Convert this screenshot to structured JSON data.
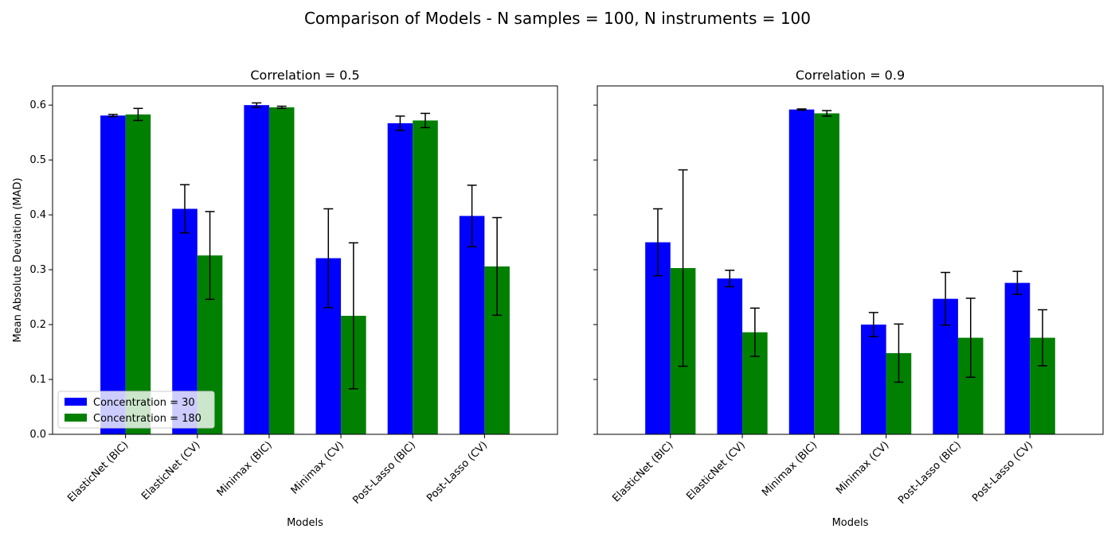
{
  "figure": {
    "title": "Comparison of Models - N samples = 100, N instruments = 100"
  },
  "colors": {
    "series_0": "#0000ff",
    "series_1": "#008000"
  },
  "chart_data": [
    {
      "type": "bar",
      "title": "Correlation = 0.5",
      "xlabel": "Models",
      "ylabel": "Mean Absolute Deviation (MAD)",
      "ylim": [
        0,
        0.635
      ],
      "yticks": [
        "0.0",
        "0.1",
        "0.2",
        "0.3",
        "0.4",
        "0.5",
        "0.6"
      ],
      "legend": "lower-left",
      "categories": [
        "ElasticNet (BIC)",
        "ElasticNet (CV)",
        "Minimax (BIC)",
        "Minimax (CV)",
        "Post-Lasso (BIC)",
        "Post-Lasso (CV)"
      ],
      "series": [
        {
          "name": "Concentration = 30",
          "values": [
            0.581,
            0.411,
            0.6,
            0.321,
            0.567,
            0.398
          ],
          "errors": [
            0.002,
            0.044,
            0.004,
            0.09,
            0.013,
            0.056
          ]
        },
        {
          "name": "Concentration = 180",
          "values": [
            0.583,
            0.326,
            0.596,
            0.216,
            0.572,
            0.306
          ],
          "errors": [
            0.011,
            0.08,
            0.002,
            0.133,
            0.013,
            0.089
          ]
        }
      ]
    },
    {
      "type": "bar",
      "title": "Correlation = 0.9",
      "xlabel": "Models",
      "ylabel": "",
      "ylim": [
        0,
        0.635
      ],
      "yticks": [],
      "legend": "",
      "categories": [
        "ElasticNet (BIC)",
        "ElasticNet (CV)",
        "Minimax (BIC)",
        "Minimax (CV)",
        "Post-Lasso (BIC)",
        "Post-Lasso (CV)"
      ],
      "series": [
        {
          "name": "Concentration = 30",
          "values": [
            0.35,
            0.284,
            0.592,
            0.2,
            0.247,
            0.276
          ],
          "errors": [
            0.061,
            0.015,
            0.001,
            0.022,
            0.048,
            0.021
          ]
        },
        {
          "name": "Concentration = 180",
          "values": [
            0.303,
            0.186,
            0.585,
            0.148,
            0.176,
            0.176
          ],
          "errors": [
            0.179,
            0.044,
            0.005,
            0.053,
            0.072,
            0.051
          ]
        }
      ]
    }
  ]
}
